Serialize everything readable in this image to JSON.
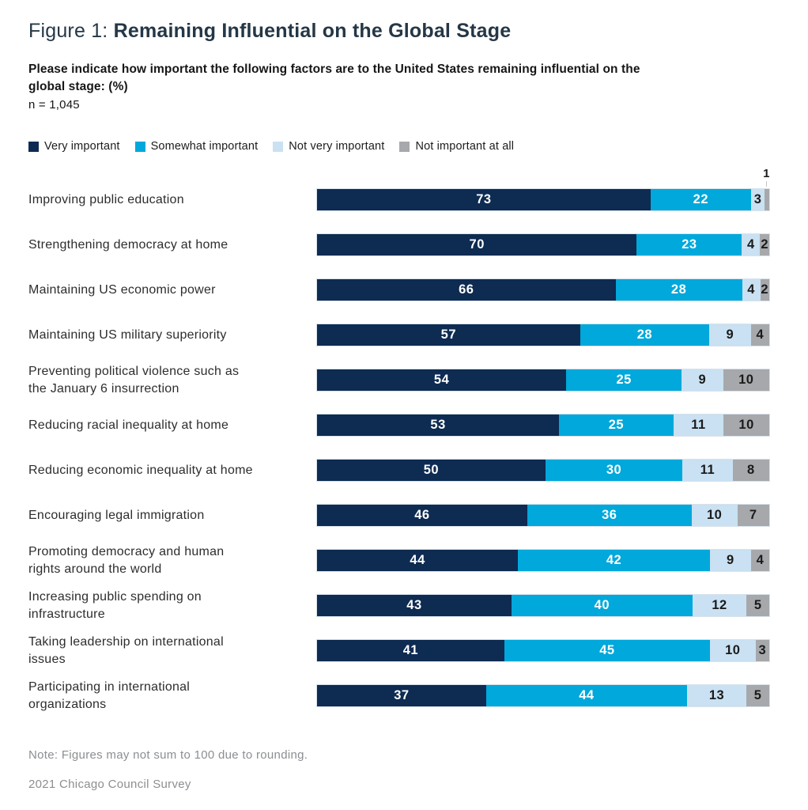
{
  "figure": {
    "label": "Figure 1:",
    "title": "Remaining Influential on the Global Stage",
    "question": "Please indicate how important the following factors are to the United States remaining influential on the\nglobal stage: (%)",
    "sample": "n = 1,045",
    "note": "Note: Figures may not sum to 100 due to rounding.",
    "source": "2021 Chicago Council Survey"
  },
  "colors": {
    "very_important": "#0e2b52",
    "somewhat_important": "#00a8db",
    "not_very_important": "#c9e1f2",
    "not_important_at_all": "#a6a8ab",
    "title_text": "#253746",
    "value_text_light": "#ffffff",
    "value_text_dark": "#1b1b1b",
    "footer_text": "#8c8e91"
  },
  "chart_data": {
    "type": "bar",
    "stacked": true,
    "orientation": "horizontal",
    "normalized_to_full_width": true,
    "value_unit": "%",
    "xlim": [
      0,
      100
    ],
    "grid": false,
    "legend_position": "top",
    "categories": [
      "Improving public education",
      "Strengthening democracy at home",
      "Maintaining US economic power",
      "Maintaining US military superiority",
      "Preventing political violence such as\nthe January 6 insurrection",
      "Reducing racial inequality at home",
      "Reducing economic inequality at home",
      "Encouraging legal immigration",
      "Promoting democracy and human\nrights around the world",
      "Increasing public spending on\ninfrastructure",
      "Taking leadership on international\nissues",
      "Participating in international\norganizations"
    ],
    "series": [
      {
        "name": "Very important",
        "color": "#0e2b52",
        "text_color": "light",
        "values": [
          73,
          70,
          66,
          57,
          54,
          53,
          50,
          46,
          44,
          43,
          41,
          37
        ]
      },
      {
        "name": "Somewhat important",
        "color": "#00a8db",
        "text_color": "light",
        "values": [
          22,
          23,
          28,
          28,
          25,
          25,
          30,
          36,
          42,
          40,
          45,
          44
        ]
      },
      {
        "name": "Not very important",
        "color": "#c9e1f2",
        "text_color": "dark",
        "values": [
          3,
          4,
          4,
          9,
          9,
          11,
          11,
          10,
          9,
          12,
          10,
          13
        ]
      },
      {
        "name": "Not important at all",
        "color": "#a6a8ab",
        "text_color": "dark",
        "values": [
          1,
          2,
          2,
          4,
          10,
          10,
          8,
          7,
          4,
          5,
          3,
          5
        ]
      }
    ],
    "callout": {
      "row_index": 0,
      "series_index": 3,
      "value": 1,
      "position": "above-bar-right"
    }
  }
}
